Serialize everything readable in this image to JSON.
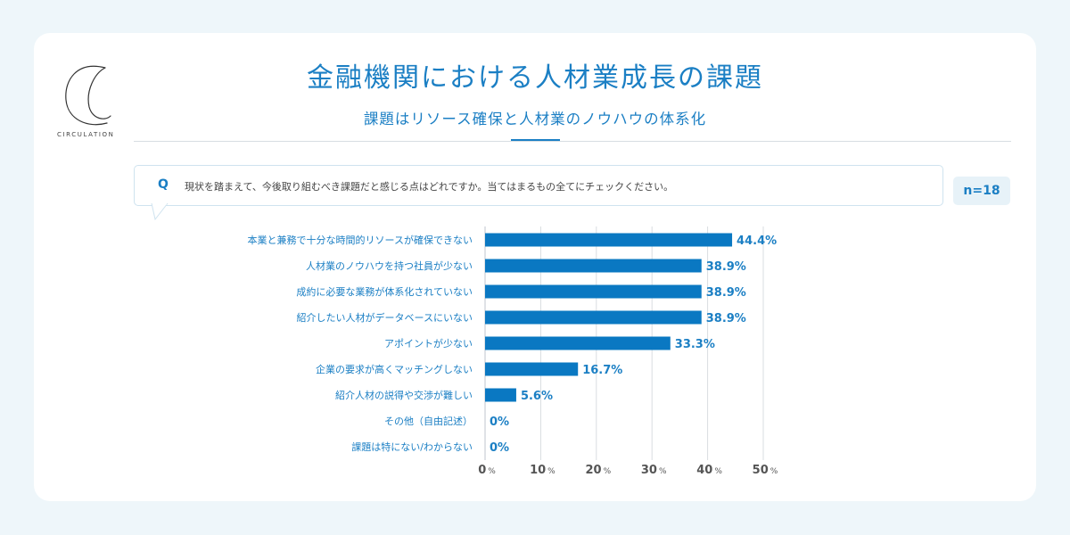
{
  "brand": {
    "logo_text": "CIRCULATION"
  },
  "header": {
    "title": "金融機関における人材業成長の課題",
    "subtitle": "課題はリソース確保と人材業のノウハウの体系化"
  },
  "question": {
    "label": "Q",
    "text": "現状を踏まえて、今後取り組むべき課題だと感じる点はどれですか。当てはまるもの全てにチェックください。"
  },
  "sample_size": "n=18",
  "colors": {
    "accent": "#1b7fc4",
    "bar": "#0a78c2",
    "grid": "#d9dde0"
  },
  "chart_data": {
    "type": "bar",
    "orientation": "horizontal",
    "title": "",
    "categories": [
      "本業と兼務で十分な時間的リソースが確保できない",
      "人材業のノウハウを持つ社員が少ない",
      "成約に必要な業務が体系化されていない",
      "紹介したい人材がデータベースにいない",
      "アポイントが少ない",
      "企業の要求が高くマッチングしない",
      "紹介人材の説得や交渉が難しい",
      "その他（自由記述）",
      "課題は特にない/わからない"
    ],
    "values": [
      44.4,
      38.9,
      38.9,
      38.9,
      33.3,
      16.7,
      5.6,
      0,
      0
    ],
    "value_labels": [
      "44.4%",
      "38.9%",
      "38.9%",
      "38.9%",
      "33.3%",
      "16.7%",
      "5.6%",
      "0%",
      "0%"
    ],
    "xlim": [
      0,
      50
    ],
    "xticks": [
      "0",
      "10",
      "20",
      "30",
      "40",
      "50"
    ],
    "tick_unit": "%",
    "xlabel": "",
    "ylabel": "",
    "grid": true
  }
}
